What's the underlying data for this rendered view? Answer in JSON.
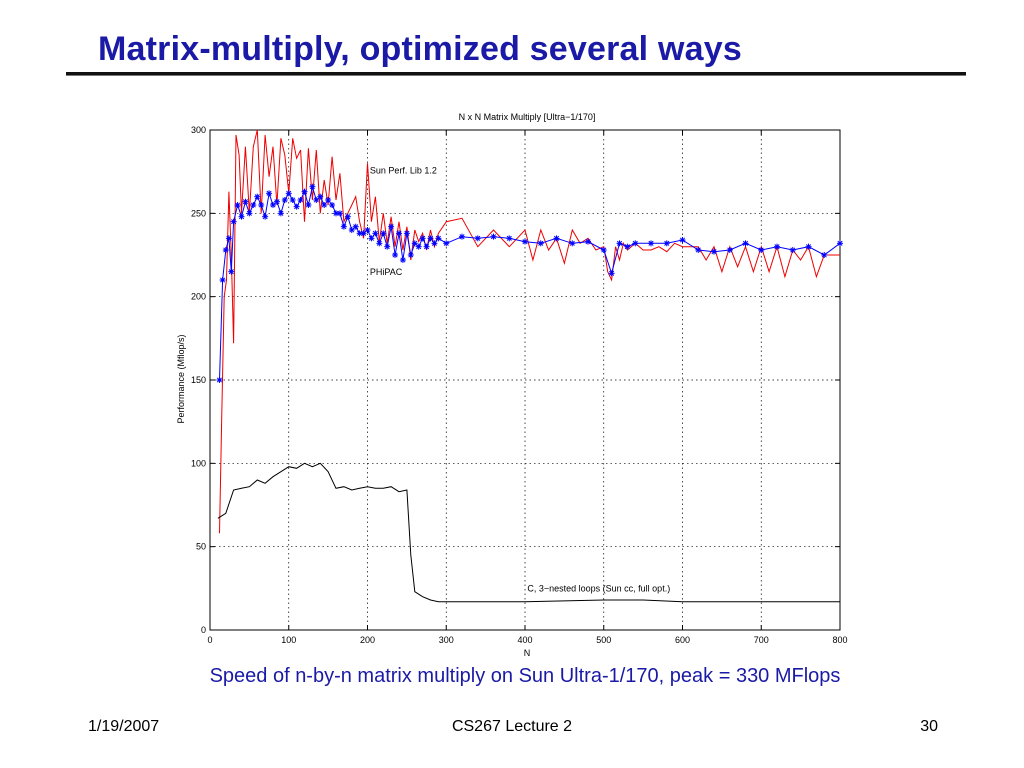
{
  "slide": {
    "title": "Matrix-multiply, optimized several ways",
    "caption": "Speed of n-by-n matrix multiply on Sun Ultra-1/170, peak = 330 MFlops"
  },
  "footer": {
    "date": "1/19/2007",
    "course": "CS267 Lecture 2",
    "page": "30"
  },
  "colors": {
    "title": "#1a1aa6",
    "sun": "#ee0000",
    "phipac": "#0000ff",
    "naive": "#000000"
  },
  "chart_data": {
    "type": "line",
    "title": "N x N Matrix Multiply [Ultra−1/170]",
    "xlabel": "N",
    "ylabel": "Performance (Mflop/s)",
    "xlim": [
      0,
      800
    ],
    "ylim": [
      0,
      300
    ],
    "xticks": [
      0,
      100,
      200,
      300,
      400,
      500,
      600,
      700,
      800
    ],
    "yticks": [
      0,
      50,
      100,
      150,
      200,
      250,
      300
    ],
    "grid": true,
    "annotations": [
      {
        "text": "Sun Perf. Lib 1.2",
        "x": 203,
        "y": 274
      },
      {
        "text": "PHiPAC",
        "x": 203,
        "y": 213
      },
      {
        "text": "C, 3−nested loops (Sun cc, full opt.)",
        "x": 403,
        "y": 23
      }
    ],
    "series": [
      {
        "name": "Sun Perf. Lib 1.2",
        "style": "line",
        "x": [
          12,
          15,
          18,
          21,
          24,
          27,
          30,
          33,
          37,
          40,
          45,
          50,
          55,
          60,
          65,
          70,
          75,
          80,
          85,
          90,
          95,
          100,
          105,
          110,
          115,
          120,
          125,
          130,
          135,
          140,
          145,
          150,
          155,
          160,
          165,
          170,
          175,
          180,
          185,
          190,
          195,
          200,
          205,
          210,
          215,
          220,
          225,
          230,
          235,
          240,
          245,
          250,
          255,
          260,
          265,
          270,
          275,
          280,
          285,
          290,
          300,
          320,
          340,
          360,
          380,
          400,
          410,
          420,
          430,
          440,
          450,
          460,
          470,
          480,
          490,
          500,
          505,
          510,
          515,
          520,
          525,
          530,
          540,
          550,
          560,
          570,
          580,
          590,
          600,
          610,
          620,
          630,
          640,
          650,
          660,
          670,
          680,
          690,
          700,
          710,
          720,
          730,
          740,
          750,
          760,
          770,
          780,
          790,
          800
        ],
        "y": [
          58,
          130,
          200,
          210,
          263,
          225,
          172,
          297,
          285,
          250,
          290,
          250,
          290,
          300,
          250,
          297,
          272,
          290,
          255,
          295,
          285,
          262,
          295,
          283,
          288,
          245,
          289,
          258,
          288,
          250,
          270,
          255,
          284,
          258,
          274,
          245,
          250,
          255,
          260,
          245,
          235,
          280,
          245,
          260,
          233,
          250,
          232,
          248,
          230,
          245,
          228,
          242,
          222,
          240,
          233,
          238,
          228,
          240,
          230,
          238,
          245,
          247,
          230,
          240,
          230,
          240,
          222,
          240,
          228,
          235,
          220,
          240,
          232,
          235,
          228,
          230,
          215,
          210,
          230,
          222,
          232,
          228,
          232,
          228,
          228,
          230,
          227,
          232,
          230,
          230,
          230,
          222,
          230,
          215,
          230,
          218,
          230,
          215,
          230,
          215,
          230,
          212,
          228,
          222,
          230,
          212,
          225,
          225,
          225
        ]
      },
      {
        "name": "PHiPAC",
        "style": "line-star",
        "x": [
          12,
          16,
          20,
          24,
          27,
          30,
          35,
          40,
          45,
          50,
          55,
          60,
          65,
          70,
          75,
          80,
          85,
          90,
          95,
          100,
          105,
          110,
          115,
          120,
          125,
          130,
          135,
          140,
          145,
          150,
          155,
          160,
          165,
          170,
          175,
          180,
          185,
          190,
          195,
          200,
          205,
          210,
          215,
          220,
          225,
          230,
          235,
          240,
          245,
          250,
          255,
          260,
          265,
          270,
          275,
          280,
          285,
          290,
          300,
          320,
          340,
          360,
          380,
          400,
          420,
          440,
          460,
          480,
          500,
          510,
          520,
          530,
          540,
          560,
          580,
          600,
          620,
          640,
          660,
          680,
          700,
          720,
          740,
          760,
          780,
          800
        ],
        "y": [
          150,
          210,
          228,
          235,
          215,
          245,
          255,
          248,
          257,
          250,
          255,
          260,
          255,
          248,
          262,
          255,
          257,
          250,
          258,
          262,
          258,
          254,
          258,
          263,
          255,
          266,
          258,
          260,
          255,
          258,
          255,
          250,
          250,
          242,
          248,
          240,
          242,
          238,
          238,
          240,
          235,
          238,
          232,
          238,
          230,
          242,
          225,
          238,
          222,
          238,
          225,
          232,
          230,
          235,
          230,
          235,
          232,
          235,
          232,
          236,
          235,
          236,
          235,
          233,
          232,
          235,
          232,
          233,
          228,
          214,
          232,
          230,
          232,
          232,
          232,
          234,
          228,
          227,
          228,
          232,
          228,
          230,
          228,
          230,
          225,
          232
        ]
      },
      {
        "name": "C, 3−nested loops (Sun cc, full opt.)",
        "style": "line",
        "x": [
          10,
          20,
          30,
          40,
          50,
          60,
          70,
          80,
          90,
          100,
          110,
          120,
          130,
          140,
          150,
          160,
          170,
          180,
          190,
          200,
          210,
          220,
          230,
          240,
          250,
          255,
          260,
          270,
          280,
          290,
          300,
          400,
          500,
          550,
          600,
          700,
          800
        ],
        "y": [
          67,
          70,
          84,
          85,
          86,
          90,
          88,
          92,
          95,
          98,
          97,
          100,
          98,
          100,
          95,
          85,
          86,
          84,
          85,
          86,
          85,
          85,
          86,
          83,
          84,
          45,
          23,
          20,
          18,
          17,
          17,
          17,
          18,
          18,
          17,
          17,
          17
        ]
      }
    ]
  }
}
